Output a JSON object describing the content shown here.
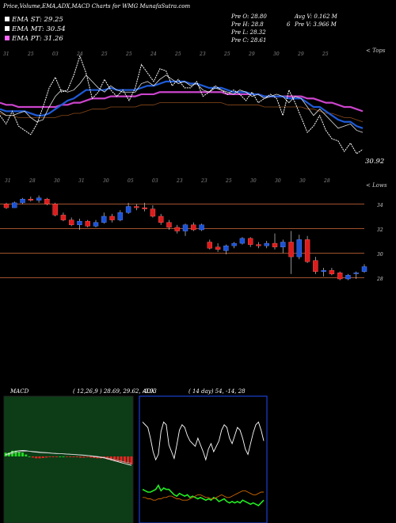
{
  "header": {
    "title": "Price,Volume,EMA,ADX,MACD Charts for WMG MunafaSutra.com",
    "legend": [
      {
        "label": "EMA ST: 29.25",
        "color": "#ffffff"
      },
      {
        "label": "EMA MT: 30.54",
        "color": "#ffffff"
      },
      {
        "label": "EMA PT: 31.26",
        "color": "#ff66ff"
      }
    ],
    "stats": {
      "open": "Pre   O: 28.80",
      "high": "Pre   H: 28.8",
      "low": "Pre   L: 28.32",
      "close": "Pre   C: 28.61",
      "avg_vol": "Avg V: 0.162  M",
      "vol_prefix": "6",
      "vol": "Pre   V: 3.966  M"
    }
  },
  "ema_panel": {
    "top_dates": [
      "31",
      "25",
      "03",
      "24",
      "25",
      "25",
      "24",
      "25",
      "23",
      "25",
      "29",
      "30",
      "29",
      "25"
    ],
    "bottom_dates": [
      "31",
      "28",
      "30",
      "31",
      "30",
      "05",
      "03",
      "23",
      "23",
      "25",
      "30",
      "30",
      "30",
      "28"
    ],
    "right_top": "< Tops",
    "right_bottom": "< Lows",
    "last_value": "30.92",
    "colors": {
      "short": "#ffffff",
      "mid": "#1e5bd9",
      "long": "#cc44cc",
      "price": "#ffffff"
    }
  },
  "chart_data": [
    {
      "type": "line",
      "panel": "EMA",
      "x": [
        1,
        2,
        3,
        4,
        5,
        6,
        7,
        8,
        9,
        10,
        11,
        12,
        13,
        14,
        15,
        16,
        17,
        18,
        19,
        20,
        21,
        22,
        23,
        24,
        25,
        26,
        27,
        28,
        29,
        30,
        31,
        32,
        33,
        34,
        35,
        36,
        37,
        38,
        39,
        40,
        41,
        42,
        43,
        44,
        45,
        46,
        47,
        48,
        49,
        50,
        51,
        52,
        53,
        54,
        55,
        56,
        57,
        58,
        59,
        60
      ],
      "series": [
        {
          "values": [
            33.6,
            33.4,
            33.4,
            33.5,
            33.6,
            33.3,
            33.1,
            33.2,
            33.8,
            34.3,
            34.6,
            34.5,
            34.6,
            34.9,
            35.3,
            35.0,
            34.7,
            34.5,
            34.8,
            34.6,
            34.5,
            34.5,
            34.5,
            34.9,
            35.0,
            34.8,
            35.1,
            35.3,
            35.1,
            34.9,
            35.0,
            34.8,
            34.9,
            34.6,
            34.5,
            34.7,
            34.6,
            34.5,
            34.4,
            34.6,
            34.5,
            34.3,
            34.4,
            34.2,
            34.3,
            34.4,
            34.3,
            34.0,
            34.3,
            34.2,
            33.8,
            33.4,
            33.7,
            33.4,
            33.1,
            32.8,
            32.9,
            33.0,
            32.7,
            32.6
          ]
        },
        {
          "values": [
            33.7,
            33.6,
            33.6,
            33.6,
            33.6,
            33.5,
            33.4,
            33.4,
            33.5,
            33.7,
            33.9,
            34.1,
            34.2,
            34.4,
            34.6,
            34.6,
            34.6,
            34.6,
            34.7,
            34.6,
            34.6,
            34.6,
            34.6,
            34.7,
            34.8,
            34.8,
            34.9,
            35.0,
            35.0,
            35.0,
            35.0,
            34.9,
            34.9,
            34.8,
            34.7,
            34.7,
            34.7,
            34.6,
            34.5,
            34.5,
            34.5,
            34.4,
            34.4,
            34.3,
            34.3,
            34.3,
            34.3,
            34.2,
            34.2,
            34.2,
            34.0,
            33.8,
            33.8,
            33.6,
            33.4,
            33.2,
            33.1,
            33.1,
            32.9,
            32.8
          ]
        },
        {
          "values": [
            34.0,
            33.9,
            33.9,
            33.8,
            33.8,
            33.8,
            33.8,
            33.8,
            33.8,
            33.8,
            33.9,
            33.9,
            34.0,
            34.0,
            34.1,
            34.2,
            34.2,
            34.2,
            34.3,
            34.3,
            34.3,
            34.3,
            34.3,
            34.4,
            34.4,
            34.4,
            34.5,
            34.5,
            34.5,
            34.5,
            34.5,
            34.5,
            34.5,
            34.5,
            34.5,
            34.5,
            34.5,
            34.4,
            34.4,
            34.4,
            34.4,
            34.4,
            34.4,
            34.3,
            34.3,
            34.3,
            34.3,
            34.3,
            34.3,
            34.3,
            34.2,
            34.2,
            34.1,
            34.0,
            34.0,
            33.9,
            33.8,
            33.8,
            33.7,
            33.6
          ]
        },
        {
          "values": [
            33.4,
            33.0,
            33.6,
            32.9,
            32.7,
            32.5,
            33.0,
            33.8,
            34.7,
            35.2,
            34.5,
            34.6,
            35.3,
            36.2,
            35.4,
            34.2,
            34.5,
            35.1,
            34.6,
            34.3,
            34.6,
            34.1,
            34.7,
            35.8,
            35.4,
            35.0,
            35.6,
            35.5,
            34.8,
            35.1,
            34.7,
            34.7,
            35.0,
            34.3,
            34.5,
            34.8,
            34.6,
            34.4,
            34.6,
            34.4,
            34.1,
            34.5,
            34.0,
            34.2,
            34.4,
            34.2,
            33.4,
            34.6,
            34.0,
            33.3,
            32.6,
            32.9,
            33.4,
            32.7,
            32.3,
            32.2,
            31.7,
            32.1,
            31.6,
            31.8
          ]
        }
      ]
    },
    {
      "type": "candlestick",
      "panel": "Price",
      "yticks": [
        34,
        32,
        30,
        28
      ],
      "up_color": "#1a53d6",
      "down_color": "#e01b1b",
      "candles": [
        {
          "o": 34.1,
          "h": 34.2,
          "l": 33.7,
          "c": 33.8
        },
        {
          "o": 33.8,
          "h": 34.3,
          "l": 33.8,
          "c": 34.2
        },
        {
          "o": 34.2,
          "h": 34.6,
          "l": 34.1,
          "c": 34.5
        },
        {
          "o": 34.5,
          "h": 34.7,
          "l": 34.3,
          "c": 34.4
        },
        {
          "o": 34.4,
          "h": 34.8,
          "l": 34.2,
          "c": 34.6
        },
        {
          "o": 34.5,
          "h": 34.6,
          "l": 34.0,
          "c": 34.1
        },
        {
          "o": 34.1,
          "h": 34.2,
          "l": 33.1,
          "c": 33.2
        },
        {
          "o": 33.2,
          "h": 33.4,
          "l": 32.7,
          "c": 32.8
        },
        {
          "o": 32.8,
          "h": 33.0,
          "l": 32.3,
          "c": 32.4
        },
        {
          "o": 32.4,
          "h": 32.9,
          "l": 32.0,
          "c": 32.7
        },
        {
          "o": 32.7,
          "h": 32.8,
          "l": 32.2,
          "c": 32.3
        },
        {
          "o": 32.3,
          "h": 32.8,
          "l": 32.2,
          "c": 32.6
        },
        {
          "o": 32.6,
          "h": 33.4,
          "l": 32.5,
          "c": 33.1
        },
        {
          "o": 33.1,
          "h": 33.3,
          "l": 32.6,
          "c": 32.8
        },
        {
          "o": 32.8,
          "h": 33.6,
          "l": 32.7,
          "c": 33.4
        },
        {
          "o": 33.4,
          "h": 34.2,
          "l": 33.3,
          "c": 33.9
        },
        {
          "o": 33.9,
          "h": 34.1,
          "l": 33.6,
          "c": 33.8
        },
        {
          "o": 33.8,
          "h": 34.2,
          "l": 33.5,
          "c": 33.7
        },
        {
          "o": 33.7,
          "h": 34.0,
          "l": 33.0,
          "c": 33.1
        },
        {
          "o": 33.1,
          "h": 33.3,
          "l": 32.4,
          "c": 32.6
        },
        {
          "o": 32.6,
          "h": 32.8,
          "l": 32.0,
          "c": 32.2
        },
        {
          "o": 32.2,
          "h": 32.4,
          "l": 31.7,
          "c": 31.9
        },
        {
          "o": 31.9,
          "h": 32.5,
          "l": 31.5,
          "c": 32.4
        },
        {
          "o": 32.4,
          "h": 32.6,
          "l": 31.9,
          "c": 32.0
        },
        {
          "o": 32.0,
          "h": 32.5,
          "l": 31.9,
          "c": 32.4
        },
        {
          "o": 31.0,
          "h": 31.2,
          "l": 30.4,
          "c": 30.5
        },
        {
          "o": 30.6,
          "h": 30.9,
          "l": 30.2,
          "c": 30.4
        },
        {
          "o": 30.3,
          "h": 30.8,
          "l": 30.0,
          "c": 30.7
        },
        {
          "o": 30.7,
          "h": 31.0,
          "l": 30.5,
          "c": 30.9
        },
        {
          "o": 30.9,
          "h": 31.4,
          "l": 30.8,
          "c": 31.3
        },
        {
          "o": 31.3,
          "h": 31.4,
          "l": 30.6,
          "c": 30.8
        },
        {
          "o": 30.8,
          "h": 31.0,
          "l": 30.5,
          "c": 30.7
        },
        {
          "o": 30.7,
          "h": 31.1,
          "l": 30.5,
          "c": 30.9
        },
        {
          "o": 30.9,
          "h": 31.7,
          "l": 30.4,
          "c": 30.6
        },
        {
          "o": 30.6,
          "h": 31.2,
          "l": 30.1,
          "c": 31.0
        },
        {
          "o": 31.0,
          "h": 31.9,
          "l": 28.4,
          "c": 29.8
        },
        {
          "o": 29.8,
          "h": 31.6,
          "l": 29.6,
          "c": 31.2
        },
        {
          "o": 31.2,
          "h": 31.5,
          "l": 29.3,
          "c": 29.4
        },
        {
          "o": 29.5,
          "h": 29.8,
          "l": 28.4,
          "c": 28.6
        },
        {
          "o": 28.6,
          "h": 28.9,
          "l": 28.2,
          "c": 28.7
        },
        {
          "o": 28.7,
          "h": 28.9,
          "l": 28.3,
          "c": 28.4
        },
        {
          "o": 28.5,
          "h": 28.6,
          "l": 27.9,
          "c": 28.0
        },
        {
          "o": 28.0,
          "h": 28.4,
          "l": 27.9,
          "c": 28.3
        },
        {
          "o": 28.5,
          "h": 28.6,
          "l": 28.0,
          "c": 28.5
        },
        {
          "o": 28.6,
          "h": 29.2,
          "l": 28.5,
          "c": 29.0
        }
      ]
    },
    {
      "type": "line",
      "panel": "MACD",
      "title": "MACD",
      "params": "( 12,26,9 ) 28.69,  29.62,  -0.93",
      "fill_color": "#0c3d17",
      "series": [
        {
          "values": [
            0.2,
            0.3,
            0.45,
            0.55,
            0.6,
            0.62,
            0.6,
            0.55,
            0.5,
            0.45,
            0.42,
            0.4,
            0.38,
            0.36,
            0.33,
            0.3,
            0.3,
            0.28,
            0.25,
            0.22,
            0.2,
            0.18,
            0.15,
            0.12,
            0.1,
            0.05,
            0.0,
            -0.05,
            -0.1,
            -0.15,
            -0.25,
            -0.35,
            -0.45,
            -0.55,
            -0.65,
            -0.75,
            -0.85,
            -0.93
          ]
        },
        {
          "values": [
            0.1,
            0.2,
            0.3,
            0.4,
            0.48,
            0.52,
            0.55,
            0.55,
            0.53,
            0.5,
            0.47,
            0.44,
            0.41,
            0.38,
            0.35,
            0.32,
            0.3,
            0.28,
            0.26,
            0.24,
            0.22,
            0.2,
            0.18,
            0.15,
            0.12,
            0.08,
            0.04,
            0.0,
            -0.05,
            -0.1,
            -0.17,
            -0.25,
            -0.33,
            -0.42,
            -0.5,
            -0.58,
            -0.66,
            -0.72
          ]
        },
        {
          "values": [
            0.1,
            0.1,
            0.15,
            0.15,
            0.12,
            0.1,
            0.05,
            0.0,
            -0.03,
            -0.05,
            -0.05,
            -0.04,
            -0.03,
            -0.02,
            -0.02,
            -0.02,
            0.0,
            0.0,
            -0.01,
            -0.02,
            -0.02,
            -0.02,
            -0.03,
            -0.03,
            -0.02,
            -0.03,
            -0.04,
            -0.05,
            -0.05,
            -0.05,
            -0.08,
            -0.1,
            -0.12,
            -0.13,
            -0.15,
            -0.17,
            -0.19,
            -0.21
          ]
        }
      ]
    },
    {
      "type": "line",
      "panel": "ADX",
      "title": "ADX",
      "params": "( 14  day) 54,  -14,  28",
      "series": [
        {
          "color": "#ffffff",
          "values": [
            72,
            70,
            68,
            60,
            50,
            44,
            48,
            65,
            72,
            70,
            55,
            50,
            45,
            55,
            66,
            70,
            68,
            62,
            58,
            56,
            54,
            60,
            55,
            50,
            44,
            52,
            56,
            50,
            54,
            58,
            66,
            70,
            68,
            60,
            56,
            62,
            68,
            66,
            60,
            52,
            48,
            56,
            64,
            70,
            72,
            66,
            58
          ]
        },
        {
          "color": "#22ee22",
          "values": [
            22,
            21,
            20,
            20,
            21,
            22,
            25,
            21,
            23,
            22,
            22,
            20,
            18,
            17,
            19,
            18,
            17,
            18,
            16,
            17,
            16,
            15,
            16,
            15,
            14,
            15,
            14,
            16,
            15,
            13,
            14,
            15,
            13,
            12,
            13,
            12,
            13,
            12,
            14,
            13,
            12,
            11,
            12,
            11,
            10,
            12,
            14
          ]
        },
        {
          "color": "#cc6600",
          "values": [
            16,
            16,
            15,
            15,
            14,
            14,
            15,
            15,
            16,
            16,
            17,
            17,
            16,
            15,
            15,
            14,
            14,
            14,
            15,
            16,
            17,
            18,
            18,
            17,
            16,
            16,
            15,
            15,
            16,
            17,
            18,
            17,
            16,
            16,
            17,
            18,
            19,
            20,
            21,
            21,
            20,
            19,
            18,
            18,
            19,
            20,
            20
          ]
        }
      ]
    }
  ]
}
